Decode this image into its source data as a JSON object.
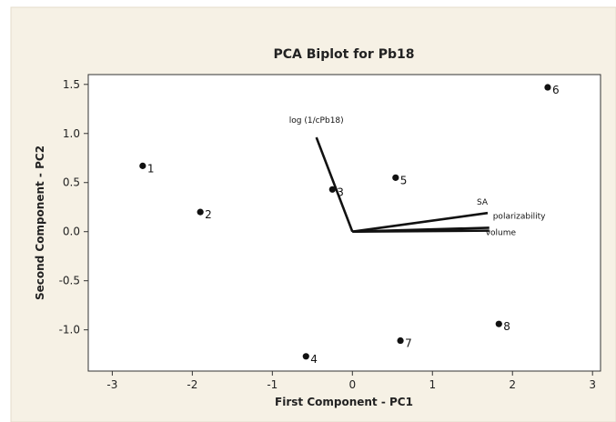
{
  "chart_data": {
    "type": "scatter",
    "title": "PCA  Biplot for Pb18",
    "xlabel": "First Component - PC1",
    "ylabel": "Second Component - PC2",
    "xlim": [
      -3.3,
      3.1
    ],
    "ylim": [
      -1.42,
      1.6
    ],
    "xticks": [
      -3,
      -2,
      -1,
      0,
      1,
      2,
      3
    ],
    "yticks": [
      -1.0,
      -0.5,
      0.0,
      0.5,
      1.0,
      1.5
    ],
    "ytick_labels": [
      "-1.0",
      "-0.5",
      "0.0",
      "0.5",
      "1.0",
      "1.5"
    ],
    "points": [
      {
        "label": "1",
        "x": -2.62,
        "y": 0.67
      },
      {
        "label": "2",
        "x": -1.9,
        "y": 0.2
      },
      {
        "label": "3",
        "x": -0.25,
        "y": 0.43
      },
      {
        "label": "4",
        "x": -0.58,
        "y": -1.27
      },
      {
        "label": "5",
        "x": 0.54,
        "y": 0.55
      },
      {
        "label": "6",
        "x": 2.44,
        "y": 1.47
      },
      {
        "label": "7",
        "x": 0.6,
        "y": -1.11
      },
      {
        "label": "8",
        "x": 1.83,
        "y": -0.94
      }
    ],
    "vectors": [
      {
        "name": "log (1/cPb18)",
        "x": -0.45,
        "y": 0.96
      },
      {
        "name": "SA",
        "x": 1.69,
        "y": 0.19
      },
      {
        "name": "polarizability",
        "x": 1.71,
        "y": 0.04
      },
      {
        "name": "volume",
        "x": 1.71,
        "y": 0.01
      }
    ],
    "grid": false,
    "colors": {
      "frame_background": "#f6f1e5",
      "plot_background": "#ffffff",
      "marker": "#111111",
      "vector": "#111111"
    }
  }
}
